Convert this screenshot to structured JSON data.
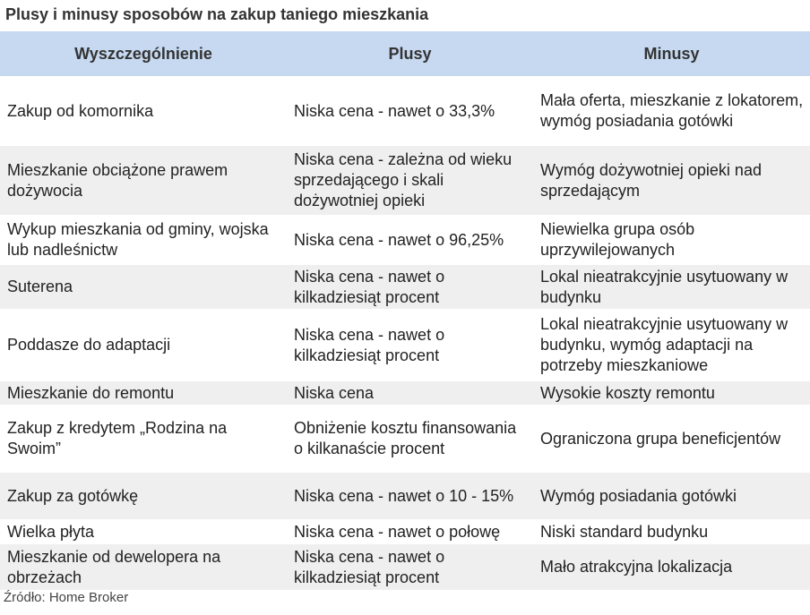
{
  "header": {
    "title": "Plusy i minusy sposobów na zakup taniego mieszkania"
  },
  "table": {
    "columns": [
      "Wyszczególnienie",
      "Plusy",
      "Minusy"
    ],
    "rows": [
      [
        "Zakup od komornika",
        "Niska cena - nawet o 33,3%",
        "Mała oferta, mieszkanie z lokatorem, wymóg posiadania gotówki"
      ],
      [
        "Mieszkanie obciążone prawem dożywocia",
        "Niska cena - zależna od wieku sprzedającego i skali dożywotniej opieki",
        "Wymóg dożywotniej opieki nad sprzedającym"
      ],
      [
        "Wykup mieszkania od gminy, wojska lub nadleśnictw",
        "Niska cena - nawet o 96,25%",
        "Niewielka grupa osób uprzywilejowanych"
      ],
      [
        "Suterena",
        "Niska cena - nawet o kilkadziesiąt procent",
        "Lokal nieatrakcyjnie usytuowany w budynku"
      ],
      [
        "Poddasze do adaptacji",
        "Niska cena - nawet o kilkadziesiąt procent",
        "Lokal nieatrakcyjnie usytuowany w budynku, wymóg adaptacji na potrzeby mieszkaniowe"
      ],
      [
        "Mieszkanie do remontu",
        "Niska cena",
        "Wysokie koszty remontu"
      ],
      [
        "Zakup z kredytem „Rodzina na Swoim”",
        "Obniżenie kosztu finansowania o kilkanaście procent",
        "Ograniczona grupa beneficjentów"
      ],
      [
        "Zakup za gotówkę",
        "Niska cena - nawet o 10 - 15%",
        "Wymóg posiadania gotówki"
      ],
      [
        "Wielka płyta",
        "Niska cena - nawet o połowę",
        "Niski standard budynku"
      ],
      [
        "Mieszkanie od dewelopera na obrzeżach",
        "Niska cena - nawet o kilkadziesiąt procent",
        "Mało atrakcyjna lokalizacja"
      ]
    ]
  },
  "footer": {
    "source": "Źródło: Home Broker"
  }
}
